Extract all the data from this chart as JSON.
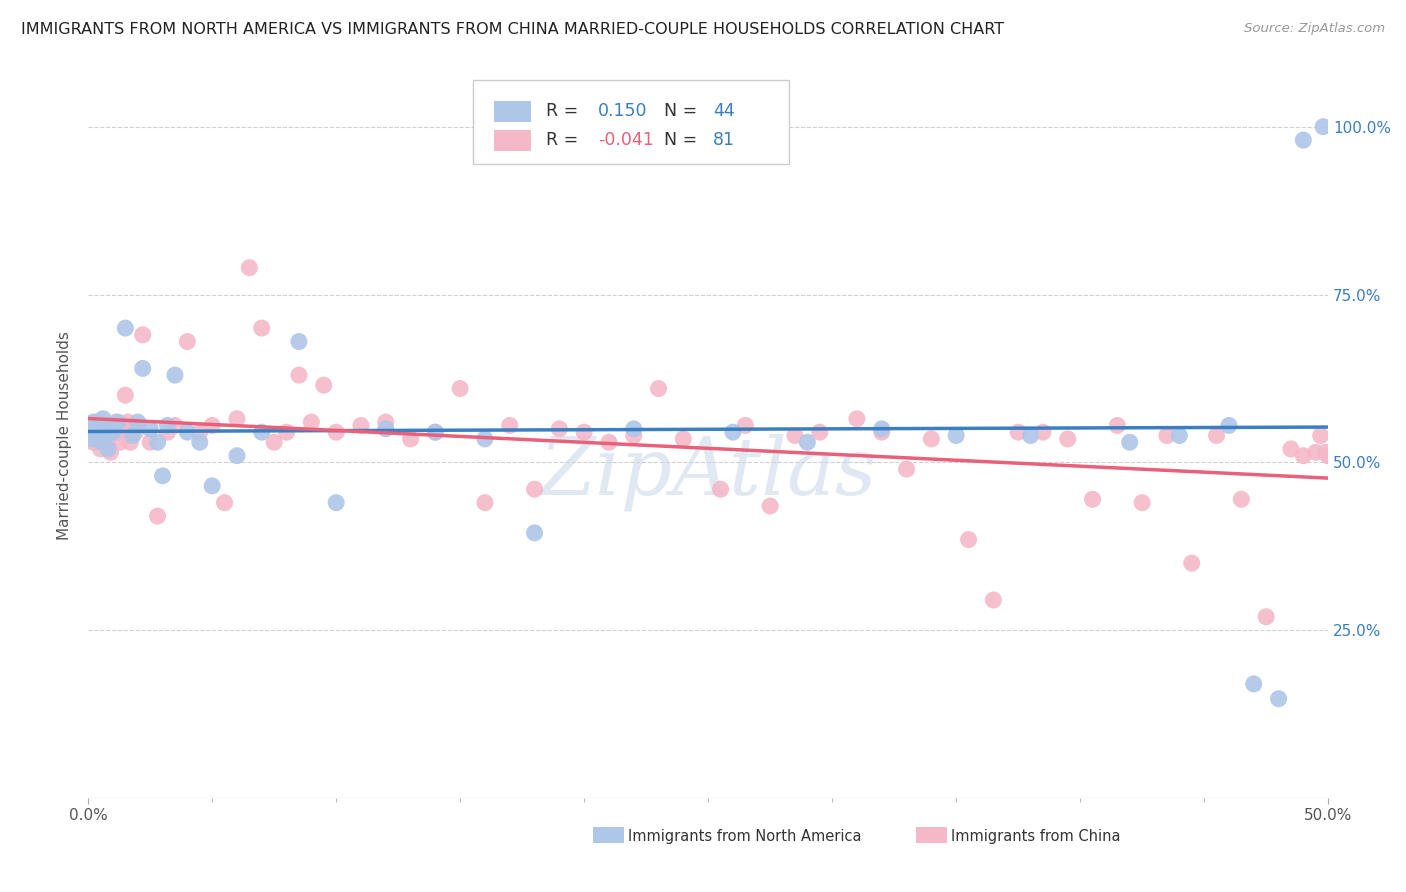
{
  "title": "IMMIGRANTS FROM NORTH AMERICA VS IMMIGRANTS FROM CHINA MARRIED-COUPLE HOUSEHOLDS CORRELATION CHART",
  "source": "Source: ZipAtlas.com",
  "ylabel": "Married-couple Households",
  "series1_name": "Immigrants from North America",
  "series2_name": "Immigrants from China",
  "series1_color": "#aec6e8",
  "series2_color": "#f4b8c8",
  "series1_line_color": "#3a7fc1",
  "series2_line_color": "#e8607a",
  "series1_R": 0.15,
  "series1_N": 44,
  "series2_R": -0.041,
  "series2_N": 81,
  "watermark": "ZipAtlas",
  "xlim": [
    0.0,
    0.5
  ],
  "ylim": [
    0.0,
    1.08
  ],
  "right_ytick_vals": [
    0.25,
    0.5,
    0.75,
    1.0
  ],
  "right_ytick_labels": [
    "25.0%",
    "50.0%",
    "75.0%",
    "100.0%"
  ],
  "xtick_vals": [
    0.0,
    0.5
  ],
  "xtick_labels": [
    "0.0%",
    "50.0%"
  ],
  "series1_x": [
    0.001,
    0.002,
    0.003,
    0.004,
    0.005,
    0.006,
    0.007,
    0.008,
    0.009,
    0.01,
    0.012,
    0.015,
    0.018,
    0.02,
    0.022,
    0.025,
    0.028,
    0.03,
    0.032,
    0.035,
    0.04,
    0.045,
    0.05,
    0.06,
    0.07,
    0.085,
    0.1,
    0.12,
    0.14,
    0.16,
    0.18,
    0.22,
    0.26,
    0.29,
    0.32,
    0.35,
    0.38,
    0.42,
    0.44,
    0.46,
    0.47,
    0.48,
    0.49,
    0.498
  ],
  "series1_y": [
    0.535,
    0.56,
    0.545,
    0.555,
    0.53,
    0.565,
    0.54,
    0.52,
    0.55,
    0.545,
    0.56,
    0.7,
    0.54,
    0.56,
    0.64,
    0.55,
    0.53,
    0.48,
    0.555,
    0.63,
    0.545,
    0.53,
    0.465,
    0.51,
    0.545,
    0.68,
    0.44,
    0.55,
    0.545,
    0.535,
    0.395,
    0.55,
    0.545,
    0.53,
    0.55,
    0.54,
    0.54,
    0.53,
    0.54,
    0.555,
    0.17,
    0.148,
    0.98,
    1.0
  ],
  "series2_x": [
    0.001,
    0.002,
    0.003,
    0.004,
    0.005,
    0.006,
    0.007,
    0.008,
    0.009,
    0.01,
    0.011,
    0.012,
    0.013,
    0.014,
    0.015,
    0.016,
    0.017,
    0.018,
    0.019,
    0.02,
    0.022,
    0.025,
    0.028,
    0.032,
    0.035,
    0.04,
    0.045,
    0.05,
    0.055,
    0.06,
    0.065,
    0.07,
    0.075,
    0.08,
    0.085,
    0.09,
    0.095,
    0.1,
    0.11,
    0.12,
    0.13,
    0.14,
    0.15,
    0.16,
    0.17,
    0.18,
    0.19,
    0.2,
    0.21,
    0.22,
    0.23,
    0.24,
    0.255,
    0.265,
    0.275,
    0.285,
    0.295,
    0.31,
    0.32,
    0.33,
    0.34,
    0.355,
    0.365,
    0.375,
    0.385,
    0.395,
    0.405,
    0.415,
    0.425,
    0.435,
    0.445,
    0.455,
    0.465,
    0.475,
    0.485,
    0.49,
    0.495,
    0.497,
    0.499,
    0.5,
    0.5
  ],
  "series2_y": [
    0.545,
    0.53,
    0.56,
    0.54,
    0.52,
    0.55,
    0.535,
    0.525,
    0.515,
    0.545,
    0.56,
    0.545,
    0.53,
    0.555,
    0.6,
    0.56,
    0.53,
    0.55,
    0.545,
    0.555,
    0.69,
    0.53,
    0.42,
    0.545,
    0.555,
    0.68,
    0.545,
    0.555,
    0.44,
    0.565,
    0.79,
    0.7,
    0.53,
    0.545,
    0.63,
    0.56,
    0.615,
    0.545,
    0.555,
    0.56,
    0.535,
    0.545,
    0.61,
    0.44,
    0.555,
    0.46,
    0.55,
    0.545,
    0.53,
    0.54,
    0.61,
    0.535,
    0.46,
    0.555,
    0.435,
    0.54,
    0.545,
    0.565,
    0.545,
    0.49,
    0.535,
    0.385,
    0.295,
    0.545,
    0.545,
    0.535,
    0.445,
    0.555,
    0.44,
    0.54,
    0.35,
    0.54,
    0.445,
    0.27,
    0.52,
    0.51,
    0.515,
    0.54,
    0.515,
    0.51,
    0.51
  ]
}
